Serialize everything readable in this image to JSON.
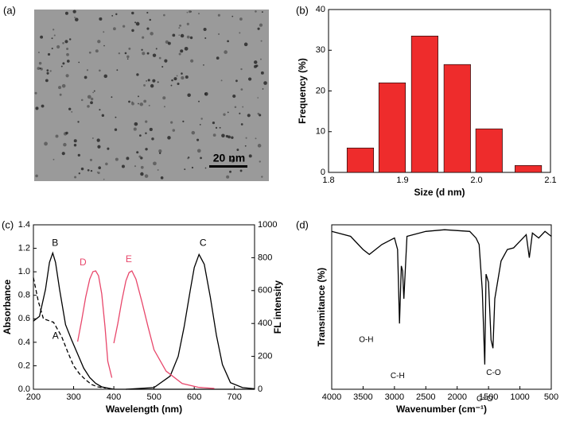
{
  "image": {
    "label": "(a)",
    "scale_bar": "20 nm"
  },
  "chart_data": [
    {
      "type": "bar",
      "label": "(b)",
      "xlabel": "Size (d nm)",
      "ylabel": "Frequency (%)",
      "x": [
        1.843,
        1.886,
        1.93,
        1.974,
        2.017,
        2.07
      ],
      "values": [
        6,
        22,
        33.5,
        26.5,
        10.7,
        1.7
      ],
      "color": "#ee2c2c",
      "xlim": [
        1.8,
        2.1
      ],
      "xticks": [
        1.8,
        1.9,
        {
          "value": 2,
          "label": "2.0"
        },
        2.1
      ],
      "ylim": [
        0,
        40
      ],
      "yticks": [
        0,
        10,
        20,
        30,
        40
      ]
    },
    {
      "type": "line",
      "label": "(c)",
      "xlabel": "Wavelength (nm)",
      "ylabel": "Absorbance",
      "y2label": "FL intensity",
      "xlim": [
        200,
        750
      ],
      "xticks": [
        200,
        300,
        400,
        500,
        600,
        700
      ],
      "ylim": [
        0,
        1.4
      ],
      "yticks": [
        {
          "value": 0,
          "label": "0.0"
        },
        0.2,
        0.4,
        0.6,
        0.8,
        {
          "value": 1,
          "label": "1.0"
        },
        1.2,
        1.4
      ],
      "y2lim": [
        0,
        1000
      ],
      "y2ticks": [
        0,
        200,
        400,
        600,
        800,
        1000
      ],
      "series": [
        {
          "name": "A",
          "color": "#000000",
          "dashed": true,
          "x": [
            200,
            212,
            225,
            250,
            270,
            285,
            300,
            315,
            330,
            345,
            360,
            380
          ],
          "values": [
            0.95,
            0.75,
            0.6,
            0.57,
            0.45,
            0.32,
            0.2,
            0.13,
            0.08,
            0.04,
            0.02,
            0.01
          ]
        },
        {
          "name": "B",
          "color": "#000000",
          "x": [
            200,
            215,
            230,
            240,
            248,
            255,
            265,
            280,
            295,
            310,
            325,
            340,
            355,
            370,
            400,
            750
          ],
          "values": [
            0.58,
            0.62,
            0.85,
            1.08,
            1.16,
            1.08,
            0.85,
            0.55,
            0.42,
            0.3,
            0.18,
            0.1,
            0.05,
            0.02,
            0,
            0
          ]
        },
        {
          "name": "C",
          "color": "#000000",
          "axis": "y2",
          "x": [
            430,
            500,
            540,
            560,
            575,
            590,
            600,
            612,
            625,
            640,
            655,
            670,
            690,
            720,
            750
          ],
          "values": [
            0,
            10,
            80,
            200,
            380,
            600,
            740,
            820,
            760,
            560,
            330,
            150,
            40,
            10,
            3
          ]
        },
        {
          "name": "D",
          "color": "#e8476b",
          "axis": "y2",
          "x": [
            310,
            320,
            330,
            340,
            348,
            355,
            362,
            370,
            378,
            385,
            395
          ],
          "values": [
            290,
            420,
            560,
            670,
            715,
            720,
            690,
            580,
            380,
            170,
            70
          ]
        },
        {
          "name": "E",
          "color": "#e8476b",
          "axis": "y2",
          "x": [
            400,
            410,
            420,
            430,
            438,
            445,
            455,
            470,
            485,
            500,
            530,
            570,
            610,
            650
          ],
          "values": [
            280,
            400,
            540,
            660,
            710,
            720,
            670,
            530,
            380,
            240,
            110,
            35,
            12,
            5
          ]
        }
      ]
    },
    {
      "type": "line",
      "label": "(d)",
      "xlabel": "Wavenumber (cm⁻¹)",
      "ylabel": "Transmitance (%)",
      "xlim": [
        4000,
        500
      ],
      "xticks": [
        4000,
        3500,
        3000,
        2500,
        2000,
        1500,
        1000,
        500
      ],
      "ylim": [
        0,
        100
      ],
      "annotations": [
        "O-H",
        "C-H",
        "C=O",
        "C-O"
      ],
      "series": [
        {
          "color": "#000000",
          "x": [
            4000,
            3700,
            3500,
            3400,
            3200,
            3000,
            2950,
            2920,
            2890,
            2870,
            2850,
            2800,
            2500,
            2200,
            1800,
            1700,
            1650,
            1600,
            1560,
            1540,
            1500,
            1460,
            1430,
            1400,
            1300,
            1200,
            1100,
            1000,
            900,
            850,
            800,
            700,
            600,
            500
          ],
          "values": [
            96,
            93,
            85,
            82,
            88,
            92,
            85,
            40,
            75,
            72,
            55,
            93,
            96,
            97,
            96,
            92,
            88,
            60,
            15,
            70,
            65,
            30,
            25,
            55,
            78,
            85,
            86,
            90,
            94,
            80,
            95,
            92,
            96,
            93
          ]
        }
      ]
    }
  ]
}
